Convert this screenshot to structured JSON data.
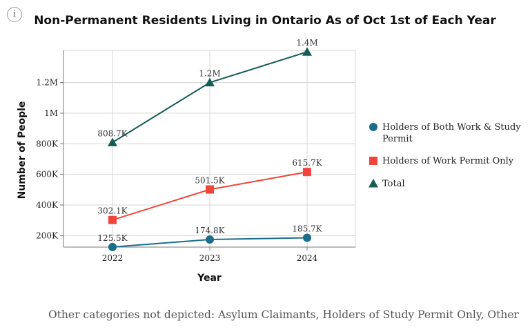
{
  "info_icon": {
    "icon": "info-icon",
    "glyph": "i"
  },
  "note": "Other categories not depicted: Asylum Claimants, Holders of Study Permit Only, Other",
  "chart_data": {
    "type": "line",
    "title": "Non-Permanent Residents Living in Ontario As of Oct 1st of Each Year",
    "xlabel": "Year",
    "ylabel": "Number of People",
    "categories": [
      "2022",
      "2023",
      "2024"
    ],
    "ylim": [
      125000,
      1410000
    ],
    "yticks": [
      200000,
      400000,
      600000,
      800000,
      1000000,
      1200000
    ],
    "ytick_labels": [
      "200K",
      "400K",
      "600K",
      "800K",
      "1M",
      "1.2M"
    ],
    "grid": true,
    "legend_position": "right",
    "series": [
      {
        "name": "Holders of Both Work & Study Permit",
        "legend_lines": [
          "Holders of Both Work & Study",
          "Permit"
        ],
        "color": "#1a6e8c",
        "marker": "circle",
        "values": [
          125500,
          174800,
          185700
        ],
        "labels": [
          "125.5K",
          "174.8K",
          "185.7K"
        ]
      },
      {
        "name": "Holders of Work Permit Only",
        "legend_lines": [
          "Holders of Work Permit Only"
        ],
        "color": "#f0453a",
        "marker": "square",
        "values": [
          302100,
          501500,
          615700
        ],
        "labels": [
          "302.1K",
          "501.5K",
          "615.7K"
        ]
      },
      {
        "name": "Total",
        "legend_lines": [
          "Total"
        ],
        "color": "#145c55",
        "marker": "triangle",
        "values": [
          808700,
          1200000,
          1400000
        ],
        "labels": [
          "808.7K",
          "1.2M",
          "1.4M"
        ]
      }
    ]
  }
}
